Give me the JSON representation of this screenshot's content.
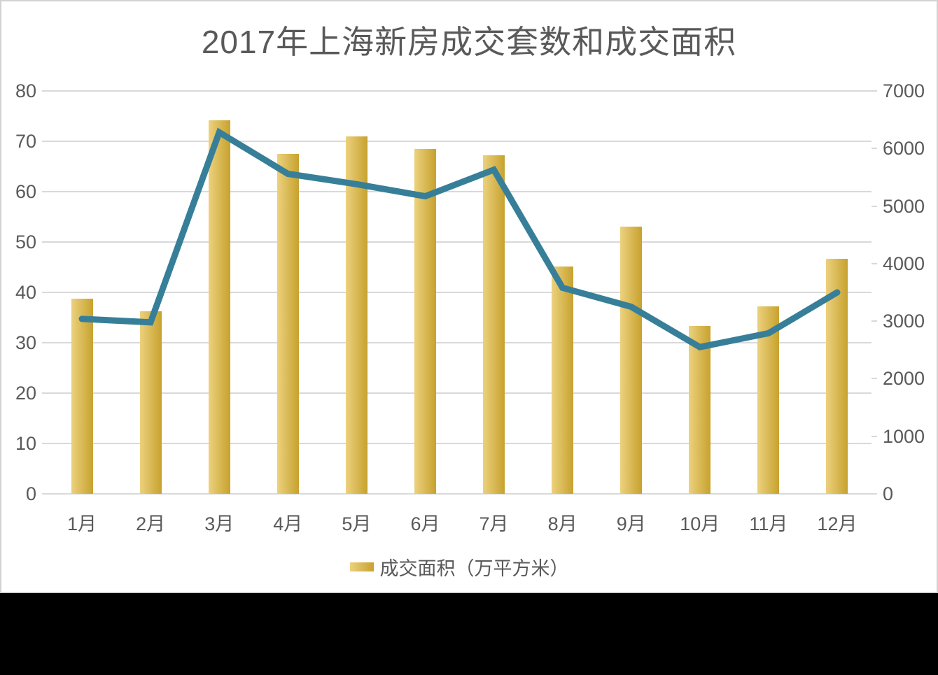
{
  "chart_data": {
    "type": "combo-bar-line",
    "title": "2017年上海新房成交套数和成交面积",
    "categories": [
      "1月",
      "2月",
      "3月",
      "4月",
      "5月",
      "6月",
      "7月",
      "8月",
      "9月",
      "10月",
      "11月",
      "12月"
    ],
    "series": [
      {
        "name": "成交面积（万平方米）",
        "type": "bar",
        "axis": "left",
        "color_start": "#ecd17e",
        "color_end": "#c7a22e",
        "values": [
          38.8,
          36.2,
          74.2,
          67.5,
          71.0,
          68.5,
          67.2,
          45.2,
          53.0,
          33.4,
          37.2,
          46.6
        ]
      },
      {
        "name": "成交套数",
        "type": "line",
        "axis": "right",
        "color": "#377f99",
        "values": [
          3040,
          2980,
          6280,
          5560,
          5380,
          5170,
          5630,
          3580,
          3250,
          2550,
          2790,
          3500
        ]
      }
    ],
    "left_axis": {
      "min": 0,
      "max": 80,
      "step": 10,
      "ticks": [
        "0",
        "10",
        "20",
        "30",
        "40",
        "50",
        "60",
        "70",
        "80"
      ]
    },
    "right_axis": {
      "min": 0,
      "max": 7000,
      "step": 1000,
      "ticks": [
        "0",
        "1000",
        "2000",
        "3000",
        "4000",
        "5000",
        "6000",
        "7000"
      ]
    },
    "grid": true,
    "legend_position": "bottom-center",
    "legend": {
      "items": [
        {
          "label": "成交面积（万平方米）",
          "swatch": "gold-gradient"
        }
      ]
    }
  },
  "colors": {
    "title_text": "#595959",
    "axis_text": "#595959",
    "gridline": "#d9d9d9",
    "chart_border": "#d2d2d2",
    "background": "#ffffff",
    "band": "#000000"
  }
}
